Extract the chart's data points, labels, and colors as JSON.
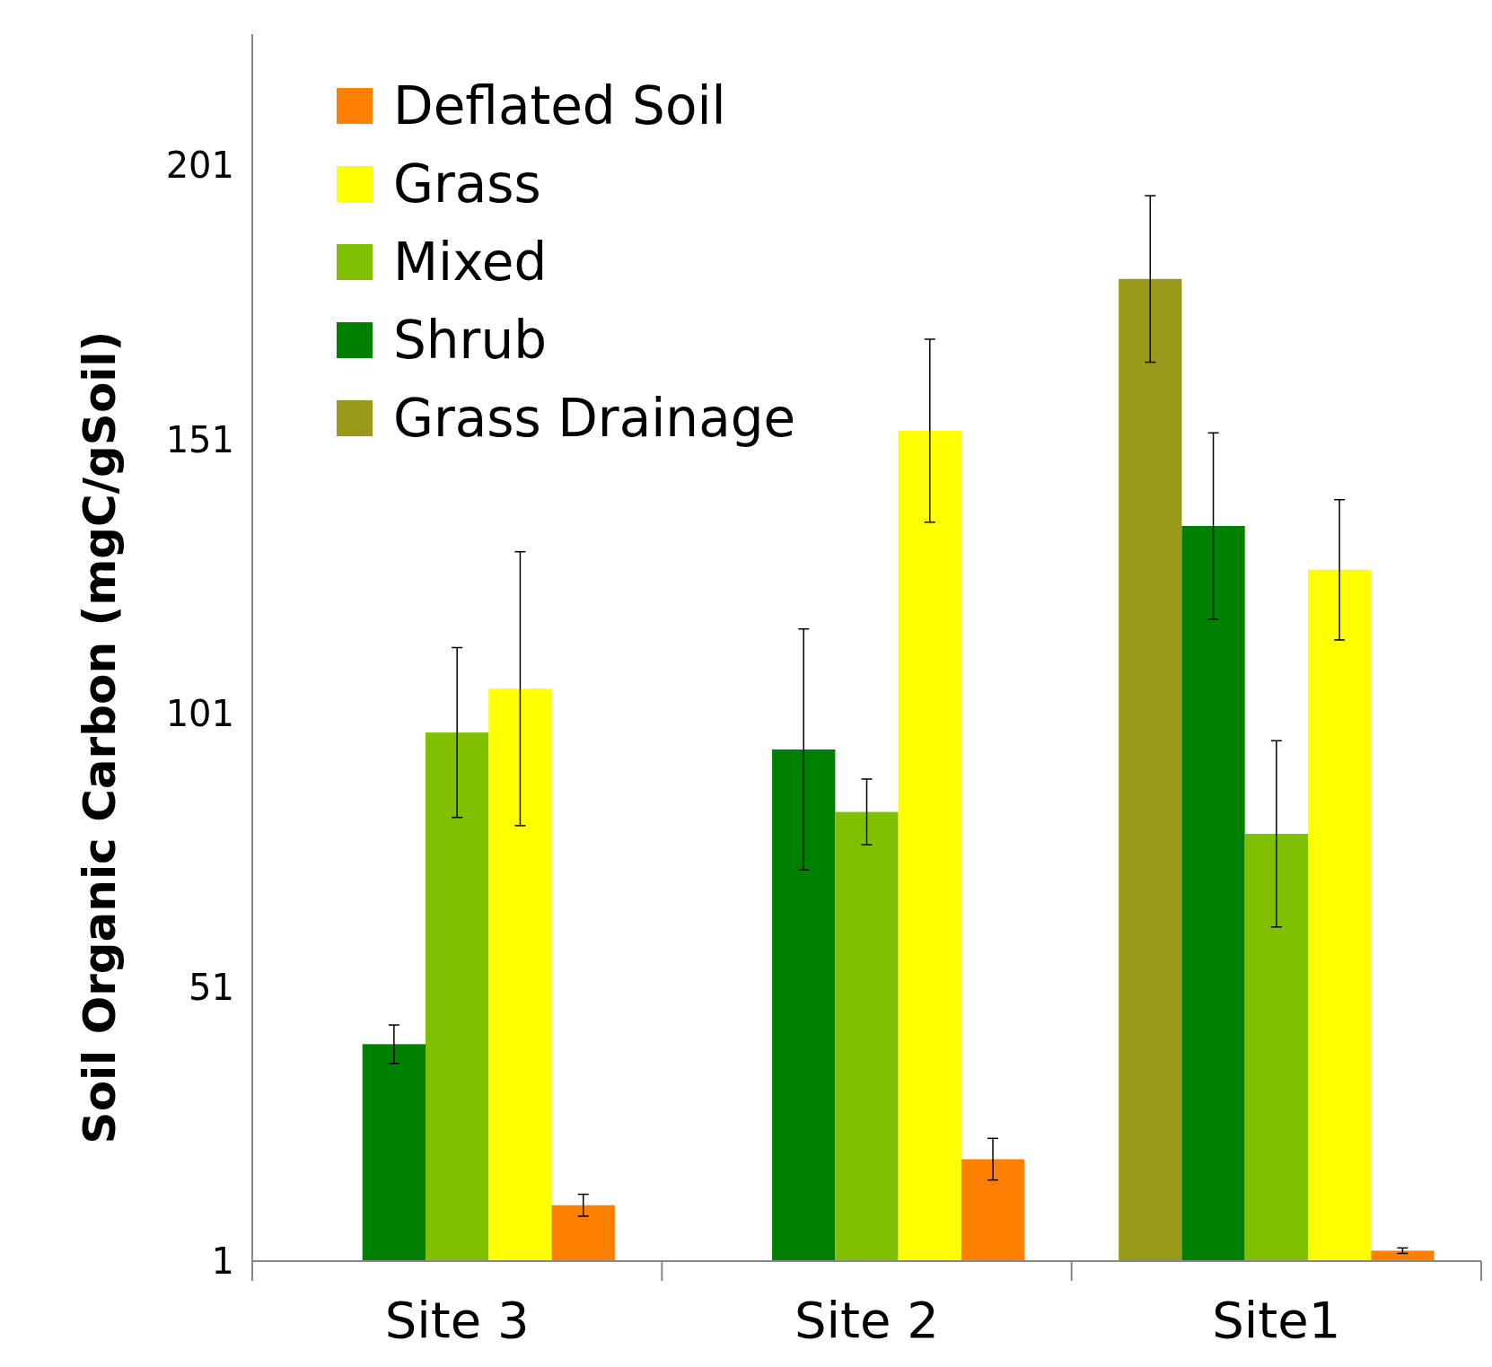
{
  "chart_data": {
    "type": "bar",
    "ylabel": "Soil Organic Carbon (mgC/gSoil)",
    "categories": [
      "Site 3",
      "Site 2",
      "Site1"
    ],
    "ylim": [
      1,
      225
    ],
    "yticks": [
      1,
      51,
      101,
      151,
      201
    ],
    "grid": false,
    "legend": "top left",
    "series": [
      {
        "name": "Grass Drainage",
        "color": "#99991a",
        "values": [
          null,
          null,
          180.3
        ],
        "errors": [
          null,
          null,
          15.2
        ]
      },
      {
        "name": "Shrub",
        "color": "#008000",
        "values": [
          40.6,
          94.4,
          135.2
        ],
        "errors": [
          3.5,
          22,
          17
        ]
      },
      {
        "name": "Mixed",
        "color": "#80c000",
        "values": [
          97.5,
          83,
          79
        ],
        "errors": [
          15.5,
          6,
          17
        ]
      },
      {
        "name": "Grass",
        "color": "#ffff00",
        "values": [
          105.5,
          152.6,
          127.2
        ],
        "errors": [
          25,
          16.7,
          12.8
        ]
      },
      {
        "name": "Deflated Soil",
        "color": "#ff8000",
        "values": [
          11.2,
          19.6,
          2.9
        ],
        "errors": [
          2,
          3.8,
          0.5
        ]
      }
    ]
  }
}
